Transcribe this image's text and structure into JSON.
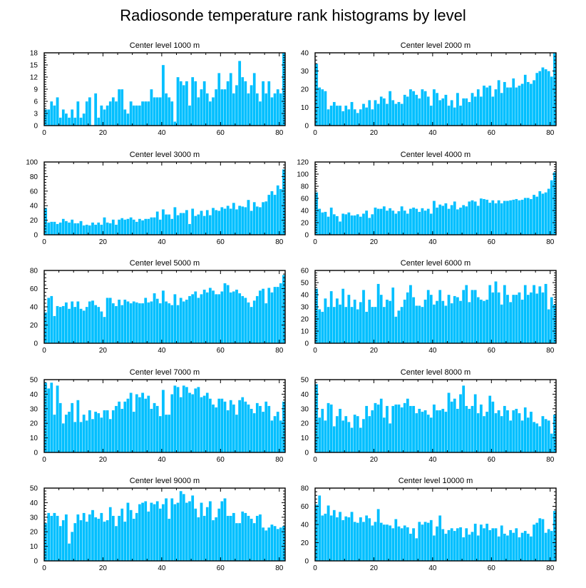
{
  "figure_title": "Radiosonde temperature rank histograms by level",
  "bar_color": "#00bfff",
  "chart_data": [
    {
      "type": "bar",
      "title": "Center level 1000 m",
      "xlabel": "",
      "ylabel": "",
      "xlim": [
        0,
        82
      ],
      "ylim": [
        0,
        18
      ],
      "xticks": [
        0,
        20,
        40,
        60,
        80
      ],
      "yticks": [
        0,
        3,
        6,
        9,
        12,
        15,
        18
      ],
      "values": [
        4,
        4,
        6,
        5,
        7,
        2,
        4,
        3,
        2,
        4,
        2,
        6,
        2,
        3,
        6,
        7,
        0,
        8,
        2,
        5,
        4,
        5,
        6,
        7,
        6,
        9,
        9,
        4,
        3,
        6,
        5,
        5,
        5,
        6,
        6,
        6,
        9,
        7,
        7,
        7,
        15,
        8,
        7,
        6,
        1,
        12,
        11,
        10,
        11,
        5,
        12,
        11,
        7,
        9,
        11,
        8,
        6,
        7,
        9,
        13,
        9,
        9,
        11,
        13,
        8,
        10,
        16,
        12,
        11,
        8,
        10,
        13,
        8,
        6,
        11,
        8,
        11,
        7,
        8,
        9,
        8,
        18
      ]
    },
    {
      "type": "bar",
      "title": "Center level 2000 m",
      "xlabel": "",
      "ylabel": "",
      "xlim": [
        0,
        82
      ],
      "ylim": [
        0,
        40
      ],
      "xticks": [
        0,
        20,
        40,
        60,
        80
      ],
      "yticks": [
        0,
        10,
        20,
        30,
        40
      ],
      "values": [
        34,
        21,
        20,
        19,
        9,
        11,
        13,
        11,
        11,
        8,
        11,
        9,
        13,
        9,
        7,
        9,
        12,
        10,
        14,
        9,
        14,
        12,
        16,
        15,
        12,
        19,
        14,
        12,
        13,
        12,
        17,
        16,
        20,
        19,
        17,
        15,
        20,
        19,
        16,
        11,
        20,
        18,
        14,
        15,
        17,
        11,
        14,
        10,
        18,
        11,
        15,
        15,
        13,
        18,
        16,
        20,
        16,
        22,
        21,
        22,
        16,
        20,
        25,
        18,
        24,
        21,
        21,
        26,
        21,
        22,
        23,
        28,
        24,
        23,
        25,
        29,
        30,
        32,
        31,
        30,
        27,
        40
      ]
    },
    {
      "type": "bar",
      "title": "Center level 3000 m",
      "xlabel": "",
      "ylabel": "",
      "xlim": [
        0,
        82
      ],
      "ylim": [
        0,
        100
      ],
      "xticks": [
        0,
        20,
        40,
        60,
        80
      ],
      "yticks": [
        0,
        20,
        40,
        60,
        80,
        100
      ],
      "values": [
        37,
        17,
        18,
        18,
        15,
        17,
        22,
        19,
        17,
        21,
        16,
        16,
        19,
        13,
        14,
        13,
        17,
        14,
        17,
        14,
        24,
        17,
        16,
        21,
        14,
        21,
        23,
        21,
        22,
        24,
        21,
        18,
        22,
        20,
        22,
        22,
        24,
        24,
        32,
        21,
        35,
        28,
        28,
        22,
        38,
        27,
        30,
        30,
        34,
        15,
        36,
        26,
        28,
        33,
        26,
        34,
        27,
        37,
        34,
        33,
        38,
        36,
        40,
        36,
        44,
        35,
        40,
        39,
        38,
        48,
        33,
        45,
        39,
        38,
        45,
        46,
        55,
        60,
        55,
        68,
        63,
        90
      ]
    },
    {
      "type": "bar",
      "title": "Center level 4000 m",
      "xlabel": "",
      "ylabel": "",
      "xlim": [
        0,
        82
      ],
      "ylim": [
        0,
        120
      ],
      "xticks": [
        0,
        20,
        40,
        60,
        80
      ],
      "yticks": [
        0,
        20,
        40,
        60,
        80,
        100,
        120
      ],
      "values": [
        70,
        43,
        37,
        38,
        30,
        45,
        34,
        31,
        22,
        35,
        34,
        37,
        32,
        32,
        34,
        30,
        35,
        40,
        28,
        34,
        45,
        43,
        43,
        47,
        40,
        44,
        40,
        35,
        39,
        47,
        40,
        35,
        43,
        45,
        43,
        38,
        44,
        40,
        43,
        35,
        56,
        45,
        50,
        48,
        52,
        43,
        49,
        55,
        42,
        45,
        49,
        47,
        55,
        57,
        55,
        48,
        60,
        59,
        58,
        53,
        57,
        52,
        57,
        52,
        56,
        56,
        57,
        58,
        59,
        57,
        58,
        61,
        61,
        59,
        66,
        63,
        72,
        68,
        70,
        76,
        90,
        103
      ]
    },
    {
      "type": "bar",
      "title": "Center level 5000 m",
      "xlabel": "",
      "ylabel": "",
      "xlim": [
        0,
        82
      ],
      "ylim": [
        0,
        80
      ],
      "xticks": [
        0,
        20,
        40,
        60,
        80
      ],
      "yticks": [
        0,
        20,
        40,
        60,
        80
      ],
      "values": [
        34,
        50,
        52,
        30,
        41,
        40,
        41,
        45,
        38,
        46,
        40,
        46,
        38,
        36,
        40,
        46,
        47,
        42,
        40,
        35,
        29,
        50,
        50,
        44,
        41,
        48,
        42,
        48,
        46,
        44,
        46,
        45,
        44,
        44,
        50,
        45,
        46,
        55,
        49,
        44,
        58,
        46,
        44,
        42,
        54,
        42,
        50,
        46,
        48,
        52,
        54,
        57,
        50,
        54,
        59,
        56,
        61,
        58,
        54,
        54,
        57,
        66,
        64,
        56,
        57,
        59,
        55,
        52,
        50,
        45,
        40,
        47,
        52,
        58,
        60,
        44,
        61,
        56,
        62,
        62,
        66,
        75
      ]
    },
    {
      "type": "bar",
      "title": "Center level 6000 m",
      "xlabel": "",
      "ylabel": "",
      "xlim": [
        0,
        82
      ],
      "ylim": [
        0,
        60
      ],
      "xticks": [
        0,
        20,
        40,
        60,
        80
      ],
      "yticks": [
        0,
        10,
        20,
        30,
        40,
        50,
        60
      ],
      "values": [
        45,
        28,
        26,
        37,
        30,
        43,
        30,
        37,
        32,
        45,
        30,
        40,
        30,
        36,
        28,
        34,
        44,
        26,
        36,
        30,
        30,
        49,
        40,
        30,
        36,
        35,
        46,
        22,
        27,
        30,
        36,
        42,
        48,
        38,
        31,
        31,
        30,
        36,
        44,
        40,
        32,
        35,
        44,
        35,
        31,
        40,
        33,
        39,
        38,
        35,
        44,
        48,
        34,
        44,
        44,
        38,
        36,
        35,
        36,
        48,
        42,
        51,
        42,
        32,
        48,
        40,
        34,
        40,
        40,
        42,
        36,
        48,
        40,
        42,
        48,
        41,
        47,
        42,
        49,
        28,
        38,
        32
      ]
    },
    {
      "type": "bar",
      "title": "Center level 7000 m",
      "xlabel": "",
      "ylabel": "",
      "xlim": [
        0,
        82
      ],
      "ylim": [
        0,
        50
      ],
      "xticks": [
        0,
        20,
        40,
        60,
        80
      ],
      "yticks": [
        0,
        10,
        20,
        30,
        40,
        50
      ],
      "values": [
        48,
        44,
        48,
        26,
        46,
        34,
        20,
        26,
        28,
        34,
        21,
        36,
        21,
        26,
        22,
        29,
        23,
        28,
        27,
        24,
        29,
        29,
        23,
        29,
        32,
        35,
        30,
        35,
        37,
        41,
        28,
        40,
        38,
        41,
        37,
        39,
        30,
        34,
        32,
        25,
        43,
        26,
        26,
        40,
        46,
        45,
        38,
        46,
        45,
        41,
        40,
        44,
        45,
        38,
        39,
        41,
        37,
        33,
        31,
        37,
        37,
        35,
        29,
        36,
        33,
        26,
        36,
        38,
        35,
        33,
        30,
        27,
        34,
        32,
        28,
        35,
        32,
        22,
        25,
        28,
        22,
        35
      ]
    },
    {
      "type": "bar",
      "title": "Center level 8000 m",
      "xlabel": "",
      "ylabel": "",
      "xlim": [
        0,
        82
      ],
      "ylim": [
        0,
        50
      ],
      "xticks": [
        0,
        20,
        40,
        60,
        80
      ],
      "yticks": [
        0,
        10,
        20,
        30,
        40,
        50
      ],
      "values": [
        47,
        24,
        30,
        22,
        34,
        33,
        18,
        25,
        30,
        22,
        25,
        21,
        17,
        26,
        25,
        17,
        23,
        32,
        25,
        29,
        34,
        33,
        37,
        24,
        32,
        20,
        32,
        33,
        33,
        31,
        34,
        37,
        32,
        32,
        27,
        30,
        28,
        29,
        26,
        24,
        33,
        29,
        29,
        30,
        28,
        41,
        35,
        37,
        30,
        40,
        46,
        32,
        30,
        32,
        40,
        27,
        33,
        25,
        28,
        39,
        35,
        27,
        29,
        25,
        32,
        29,
        22,
        29,
        30,
        27,
        22,
        31,
        24,
        28,
        21,
        20,
        18,
        25,
        23,
        22,
        13,
        26
      ]
    },
    {
      "type": "bar",
      "title": "Center level 9000 m",
      "xlabel": "",
      "ylabel": "",
      "xlim": [
        0,
        82
      ],
      "ylim": [
        0,
        50
      ],
      "xticks": [
        0,
        20,
        40,
        60,
        80
      ],
      "yticks": [
        0,
        10,
        20,
        30,
        40,
        50
      ],
      "values": [
        26,
        33,
        31,
        33,
        31,
        24,
        28,
        32,
        12,
        20,
        26,
        32,
        28,
        33,
        27,
        32,
        35,
        30,
        29,
        33,
        27,
        28,
        37,
        31,
        24,
        31,
        36,
        27,
        40,
        35,
        29,
        33,
        39,
        40,
        41,
        34,
        40,
        39,
        41,
        36,
        39,
        43,
        29,
        43,
        39,
        40,
        48,
        46,
        40,
        41,
        45,
        36,
        30,
        40,
        31,
        37,
        41,
        28,
        30,
        36,
        41,
        43,
        31,
        31,
        33,
        26,
        26,
        34,
        33,
        31,
        29,
        26,
        31,
        32,
        23,
        21,
        23,
        25,
        24,
        22,
        23,
        24
      ]
    },
    {
      "type": "bar",
      "title": "Center level 10000 m",
      "xlabel": "",
      "ylabel": "",
      "xlim": [
        0,
        82
      ],
      "ylim": [
        0,
        80
      ],
      "xticks": [
        0,
        20,
        40,
        60,
        80
      ],
      "yticks": [
        0,
        20,
        40,
        60,
        80
      ],
      "values": [
        62,
        72,
        50,
        52,
        61,
        50,
        56,
        48,
        54,
        45,
        49,
        48,
        54,
        43,
        42,
        48,
        43,
        50,
        47,
        39,
        43,
        57,
        42,
        40,
        40,
        39,
        36,
        46,
        38,
        36,
        39,
        37,
        30,
        36,
        25,
        43,
        40,
        43,
        42,
        45,
        28,
        38,
        50,
        35,
        30,
        34,
        36,
        33,
        36,
        37,
        26,
        36,
        29,
        32,
        41,
        28,
        40,
        36,
        41,
        34,
        36,
        36,
        27,
        39,
        30,
        28,
        34,
        31,
        36,
        26,
        31,
        33,
        30,
        27,
        40,
        42,
        47,
        46,
        31,
        35,
        33,
        55
      ]
    }
  ]
}
